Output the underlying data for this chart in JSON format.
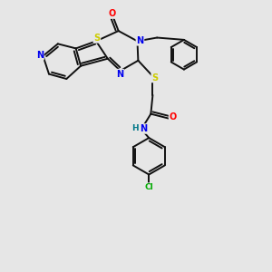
{
  "background_color": "#e6e6e6",
  "atom_colors": {
    "N": "#0000ee",
    "S": "#cccc00",
    "O": "#ff0000",
    "Cl": "#00aa00",
    "H": "#007788",
    "C": "#111111"
  },
  "bond_color": "#111111",
  "bond_width": 1.4
}
